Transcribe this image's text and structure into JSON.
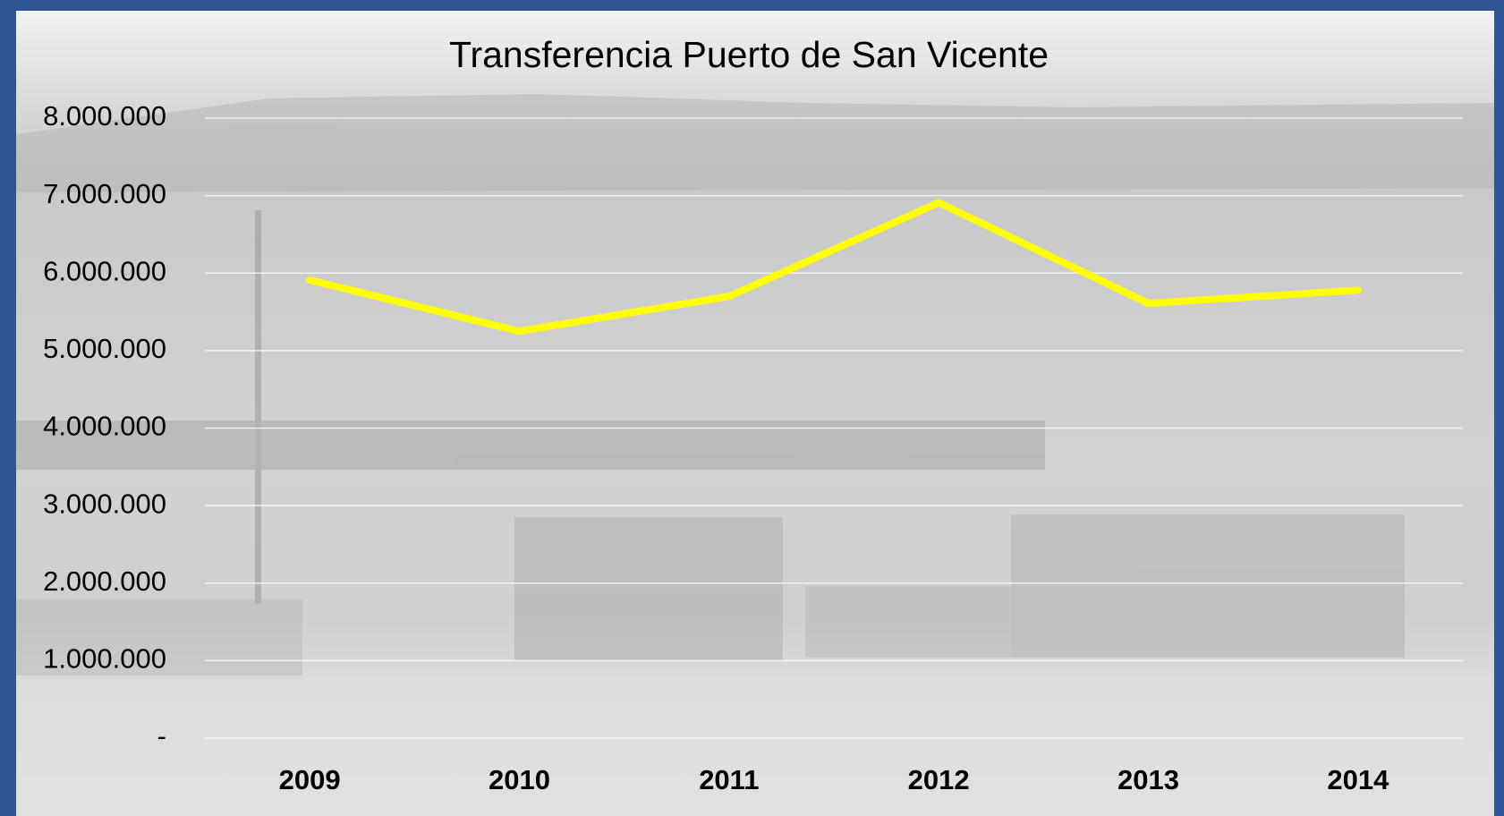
{
  "chart_data": {
    "type": "line",
    "title": "Transferencia Puerto de San Vicente",
    "categories": [
      "2009",
      "2010",
      "2011",
      "2012",
      "2013",
      "2014"
    ],
    "series": [
      {
        "color": "#ffff00",
        "values": [
          5910000,
          5250000,
          5700000,
          6910000,
          5610000,
          5780000
        ]
      }
    ],
    "ylim": [
      0,
      8000000
    ],
    "yticks": [
      {
        "value": 0,
        "label": "-"
      },
      {
        "value": 1000000,
        "label": "1.000.000"
      },
      {
        "value": 2000000,
        "label": "2.000.000"
      },
      {
        "value": 3000000,
        "label": "3.000.000"
      },
      {
        "value": 4000000,
        "label": "4.000.000"
      },
      {
        "value": 5000000,
        "label": "5.000.000"
      },
      {
        "value": 6000000,
        "label": "6.000.000"
      },
      {
        "value": 7000000,
        "label": "7.000.000"
      },
      {
        "value": 8000000,
        "label": "8.000.000"
      }
    ],
    "grid": true
  }
}
